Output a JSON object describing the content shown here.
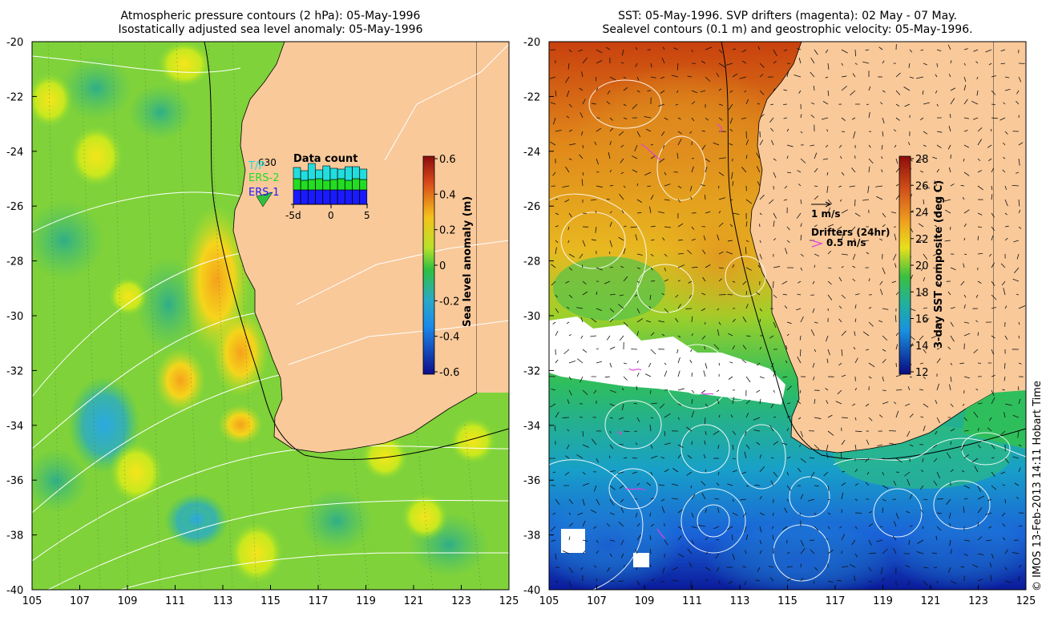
{
  "left_panel": {
    "title_line1": "Atmospheric pressure contours (2 hPa): 05-May-1996",
    "title_line2": "Isostatically adjusted sea level anomaly: 05-May-1996",
    "y_ticks": [
      "-20",
      "-22",
      "-24",
      "-26",
      "-28",
      "-30",
      "-32",
      "-34",
      "-36",
      "-38",
      "-40"
    ],
    "x_ticks": [
      "105",
      "107",
      "109",
      "111",
      "113",
      "115",
      "117",
      "119",
      "121",
      "123",
      "125"
    ],
    "colorbar": {
      "label": "Sea level anomaly (m)",
      "ticks": [
        "0.6",
        "0.4",
        "0.2",
        "0",
        "-0.2",
        "-0.4",
        "-0.6"
      ]
    },
    "data_count": {
      "title": "Data count",
      "total": "630",
      "satellites": [
        "T/P",
        "ERS-2",
        "ERS-1"
      ],
      "satellite_colors": [
        "#22dddd",
        "#22dd22",
        "#1a1aff"
      ],
      "x_ticks": [
        "-5d",
        "0",
        "5"
      ]
    }
  },
  "right_panel": {
    "title_line1": "SST: 05-May-1996. SVP drifters (magenta): 02 May - 07 May.",
    "title_line2": "Sealevel contours (0.1 m) and geostrophic velocity: 05-May-1996.",
    "y_ticks": [
      "-20",
      "-22",
      "-24",
      "-26",
      "-28",
      "-30",
      "-32",
      "-34",
      "-36",
      "-38",
      "-40"
    ],
    "x_ticks": [
      "105",
      "107",
      "109",
      "111",
      "113",
      "115",
      "117",
      "119",
      "121",
      "123",
      "125"
    ],
    "colorbar": {
      "label": "3-day SST composite (deg C)",
      "ticks": [
        "28",
        "26",
        "24",
        "22",
        "20",
        "18",
        "16",
        "14",
        "12"
      ]
    },
    "scale_arrow_label": "1 m/s",
    "drifters_label": "Drifters (24hr)",
    "drifter_speed_label": "0.5 m/s"
  },
  "credit": "© IMOS 13-Feb-2013 14:11 Hobart Time",
  "colors": {
    "land": "#f9c99a",
    "drifter": "#e040e0"
  }
}
